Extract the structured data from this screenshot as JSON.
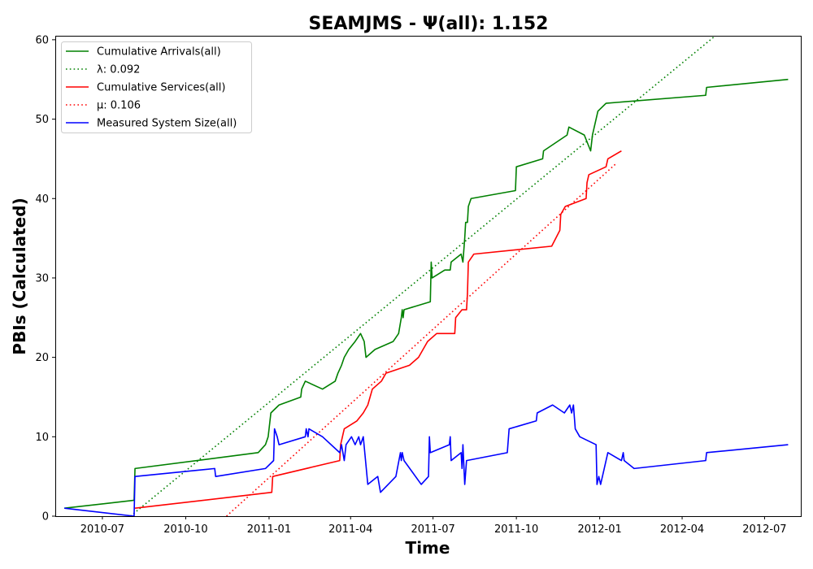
{
  "chart_data": {
    "type": "line",
    "title": "SEAMJMS -  Ψ(all): 1.152",
    "xlabel": "Time",
    "ylabel": "PBIs (Calculated)",
    "xlim": [
      "2010-05-10",
      "2012-08-10"
    ],
    "ylim": [
      0,
      60.5
    ],
    "x_tick_labels": [
      "2010-07",
      "2010-10",
      "2011-01",
      "2011-04",
      "2011-07",
      "2011-10",
      "2012-01",
      "2012-04",
      "2012-07"
    ],
    "x_ticks": [
      "2010-07-01",
      "2010-10-01",
      "2011-01-01",
      "2011-04-01",
      "2011-07-01",
      "2011-10-01",
      "2012-01-01",
      "2012-04-01",
      "2012-07-01"
    ],
    "y_ticks": [
      0,
      10,
      20,
      30,
      40,
      50,
      60
    ],
    "grid": false,
    "legend_placement": "top-left",
    "series": [
      {
        "name": "Cumulative Arrivals(all)",
        "color": "#008000",
        "style": "solid",
        "points": [
          [
            "2010-05-20",
            1
          ],
          [
            "2010-08-05",
            2
          ],
          [
            "2010-08-06",
            6
          ],
          [
            "2010-12-20",
            8
          ],
          [
            "2010-12-28",
            9
          ],
          [
            "2010-12-31",
            10
          ],
          [
            "2011-01-01",
            11
          ],
          [
            "2011-01-03",
            13
          ],
          [
            "2011-01-12",
            14
          ],
          [
            "2011-02-05",
            15
          ],
          [
            "2011-02-06",
            16
          ],
          [
            "2011-02-10",
            17
          ],
          [
            "2011-03-01",
            16
          ],
          [
            "2011-03-15",
            17
          ],
          [
            "2011-03-18",
            18
          ],
          [
            "2011-03-22",
            19
          ],
          [
            "2011-03-25",
            20
          ],
          [
            "2011-03-30",
            21
          ],
          [
            "2011-04-06",
            22
          ],
          [
            "2011-04-12",
            23
          ],
          [
            "2011-04-16",
            22
          ],
          [
            "2011-04-18",
            20
          ],
          [
            "2011-04-28",
            21
          ],
          [
            "2011-05-18",
            22
          ],
          [
            "2011-05-24",
            23
          ],
          [
            "2011-05-27",
            25
          ],
          [
            "2011-05-28",
            26
          ],
          [
            "2011-05-29",
            25
          ],
          [
            "2011-05-30",
            26
          ],
          [
            "2011-06-28",
            27
          ],
          [
            "2011-06-29",
            32
          ],
          [
            "2011-06-30",
            30
          ],
          [
            "2011-07-14",
            31
          ],
          [
            "2011-07-20",
            31
          ],
          [
            "2011-07-21",
            32
          ],
          [
            "2011-08-01",
            33
          ],
          [
            "2011-08-03",
            32
          ],
          [
            "2011-08-05",
            35
          ],
          [
            "2011-08-06",
            37
          ],
          [
            "2011-08-08",
            37
          ],
          [
            "2011-08-09",
            39
          ],
          [
            "2011-08-12",
            40
          ],
          [
            "2011-09-30",
            41
          ],
          [
            "2011-10-01",
            44
          ],
          [
            "2011-10-30",
            45
          ],
          [
            "2011-10-31",
            46
          ],
          [
            "2011-11-26",
            48
          ],
          [
            "2011-11-28",
            49
          ],
          [
            "2011-12-15",
            48
          ],
          [
            "2011-12-22",
            46
          ],
          [
            "2011-12-24",
            48
          ],
          [
            "2011-12-26",
            49
          ],
          [
            "2011-12-28",
            50
          ],
          [
            "2011-12-30",
            51
          ],
          [
            "2012-01-08",
            52
          ],
          [
            "2012-04-27",
            53
          ],
          [
            "2012-04-28",
            54
          ],
          [
            "2012-07-27",
            55
          ]
        ]
      },
      {
        "name": "λ: 0.092",
        "color": "#008000",
        "style": "dotted",
        "points": [
          [
            "2010-08-01",
            0
          ],
          [
            "2012-05-13",
            61
          ]
        ]
      },
      {
        "name": "Cumulative Services(all)",
        "color": "#ff0000",
        "style": "solid",
        "points": [
          [
            "2010-08-06",
            1
          ],
          [
            "2011-01-04",
            3
          ],
          [
            "2011-01-05",
            5
          ],
          [
            "2011-03-20",
            7
          ],
          [
            "2011-03-21",
            9
          ],
          [
            "2011-03-25",
            11
          ],
          [
            "2011-04-08",
            12
          ],
          [
            "2011-04-15",
            13
          ],
          [
            "2011-04-20",
            14
          ],
          [
            "2011-04-25",
            16
          ],
          [
            "2011-05-05",
            17
          ],
          [
            "2011-05-10",
            18
          ],
          [
            "2011-06-05",
            19
          ],
          [
            "2011-06-15",
            20
          ],
          [
            "2011-06-25",
            22
          ],
          [
            "2011-07-05",
            23
          ],
          [
            "2011-07-25",
            23
          ],
          [
            "2011-07-26",
            25
          ],
          [
            "2011-08-02",
            26
          ],
          [
            "2011-08-07",
            26
          ],
          [
            "2011-08-08",
            28
          ],
          [
            "2011-08-09",
            32
          ],
          [
            "2011-08-15",
            33
          ],
          [
            "2011-11-09",
            34
          ],
          [
            "2011-11-18",
            36
          ],
          [
            "2011-11-19",
            38
          ],
          [
            "2011-11-24",
            39
          ],
          [
            "2011-12-17",
            40
          ],
          [
            "2011-12-18",
            42
          ],
          [
            "2011-12-20",
            43
          ],
          [
            "2012-01-08",
            44
          ],
          [
            "2012-01-10",
            45
          ],
          [
            "2012-01-25",
            46
          ]
        ]
      },
      {
        "name": "μ: 0.106",
        "color": "#ff0000",
        "style": "dotted",
        "points": [
          [
            "2010-11-15",
            0
          ],
          [
            "2012-01-20",
            44.5
          ]
        ]
      },
      {
        "name": "Measured System Size(all)",
        "color": "#0000ff",
        "style": "solid",
        "points": [
          [
            "2010-05-20",
            1
          ],
          [
            "2010-08-05",
            0
          ],
          [
            "2010-08-06",
            5
          ],
          [
            "2010-11-02",
            6
          ],
          [
            "2010-11-03",
            5
          ],
          [
            "2010-12-28",
            6
          ],
          [
            "2011-01-06",
            7
          ],
          [
            "2011-01-07",
            11
          ],
          [
            "2011-01-10",
            10
          ],
          [
            "2011-01-12",
            9
          ],
          [
            "2011-02-10",
            10
          ],
          [
            "2011-02-11",
            11
          ],
          [
            "2011-02-13",
            10
          ],
          [
            "2011-02-14",
            11
          ],
          [
            "2011-03-01",
            10
          ],
          [
            "2011-03-20",
            8
          ],
          [
            "2011-03-22",
            9
          ],
          [
            "2011-03-25",
            7
          ],
          [
            "2011-03-27",
            9
          ],
          [
            "2011-04-02",
            10
          ],
          [
            "2011-04-06",
            9
          ],
          [
            "2011-04-10",
            10
          ],
          [
            "2011-04-12",
            9
          ],
          [
            "2011-04-15",
            10
          ],
          [
            "2011-04-20",
            4
          ],
          [
            "2011-05-01",
            5
          ],
          [
            "2011-05-04",
            3
          ],
          [
            "2011-05-21",
            5
          ],
          [
            "2011-05-26",
            8
          ],
          [
            "2011-05-27",
            7
          ],
          [
            "2011-05-28",
            8
          ],
          [
            "2011-05-30",
            7
          ],
          [
            "2011-06-18",
            4
          ],
          [
            "2011-06-26",
            5
          ],
          [
            "2011-06-27",
            10
          ],
          [
            "2011-06-28",
            8
          ],
          [
            "2011-07-19",
            9
          ],
          [
            "2011-07-20",
            10
          ],
          [
            "2011-07-21",
            7
          ],
          [
            "2011-08-01",
            8
          ],
          [
            "2011-08-02",
            6
          ],
          [
            "2011-08-03",
            9
          ],
          [
            "2011-08-05",
            4
          ],
          [
            "2011-08-07",
            7
          ],
          [
            "2011-09-21",
            8
          ],
          [
            "2011-09-23",
            11
          ],
          [
            "2011-10-23",
            12
          ],
          [
            "2011-10-24",
            13
          ],
          [
            "2011-11-10",
            14
          ],
          [
            "2011-11-23",
            13
          ],
          [
            "2011-11-29",
            14
          ],
          [
            "2011-12-01",
            13
          ],
          [
            "2011-12-03",
            14
          ],
          [
            "2011-12-05",
            11
          ],
          [
            "2011-12-10",
            10
          ],
          [
            "2011-12-28",
            9
          ],
          [
            "2011-12-29",
            4
          ],
          [
            "2011-12-31",
            5
          ],
          [
            "2012-01-02",
            4
          ],
          [
            "2012-01-06",
            6
          ],
          [
            "2012-01-10",
            8
          ],
          [
            "2012-01-25",
            7
          ],
          [
            "2012-01-27",
            8
          ],
          [
            "2012-01-28",
            7
          ],
          [
            "2012-02-08",
            6
          ],
          [
            "2012-04-27",
            7
          ],
          [
            "2012-04-28",
            8
          ],
          [
            "2012-07-27",
            9
          ]
        ]
      }
    ]
  }
}
